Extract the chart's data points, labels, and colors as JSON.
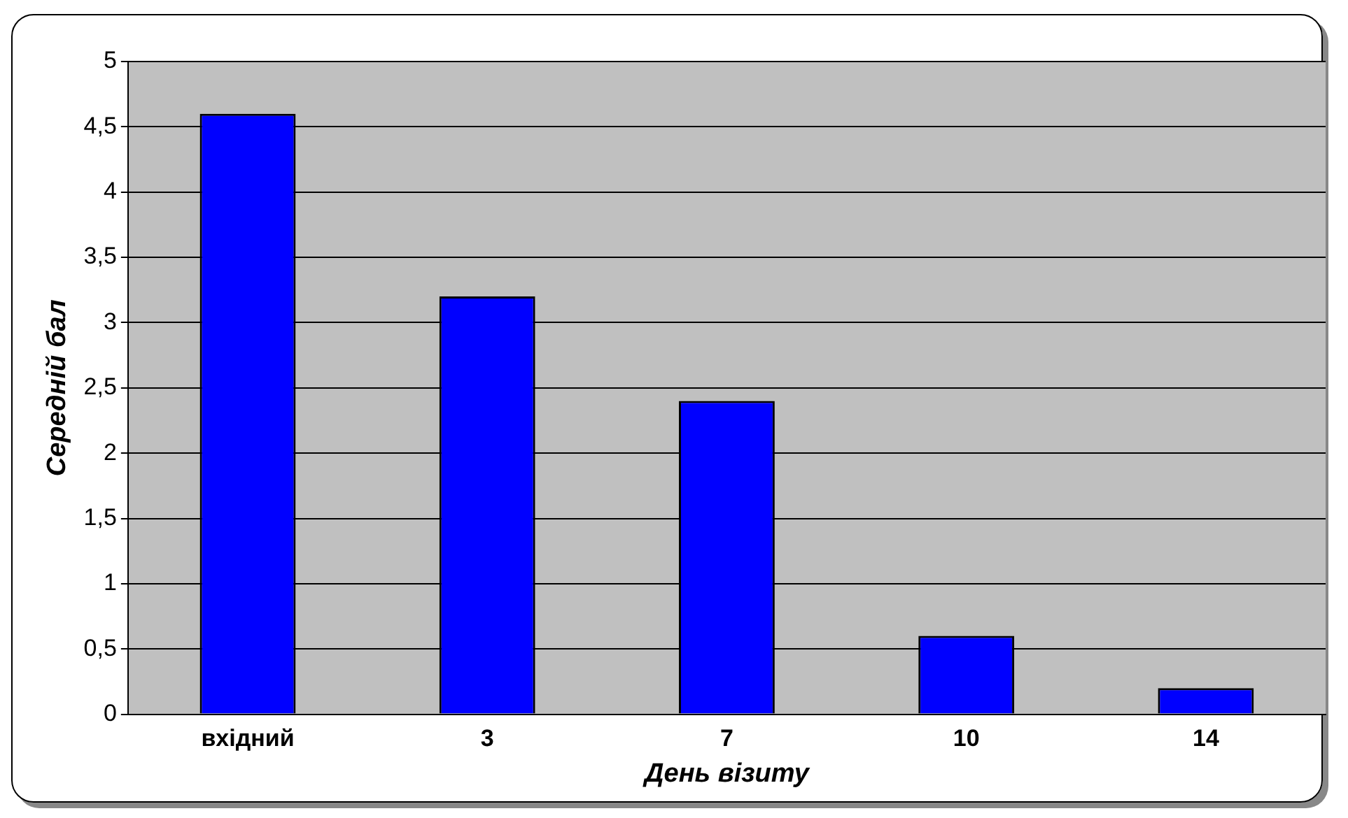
{
  "chart_data": {
    "type": "bar",
    "xlabel": "День візиту",
    "ylabel": "Середній бал",
    "categories": [
      "вхідний",
      "3",
      "7",
      "10",
      "14"
    ],
    "values": [
      4.6,
      3.2,
      2.4,
      0.6,
      0.2
    ],
    "color": "#0000ff",
    "ylim": [
      0,
      5
    ],
    "yticks": [
      0,
      {
        "value": 0.5,
        "label": "0,5"
      },
      1,
      {
        "value": 1.5,
        "label": "1,5"
      },
      2,
      {
        "value": 2.5,
        "label": "2,5"
      },
      3,
      {
        "value": 3.5,
        "label": "3,5"
      },
      4,
      {
        "value": 4.5,
        "label": "4,5"
      },
      5
    ],
    "grid": "y",
    "legend": false
  }
}
